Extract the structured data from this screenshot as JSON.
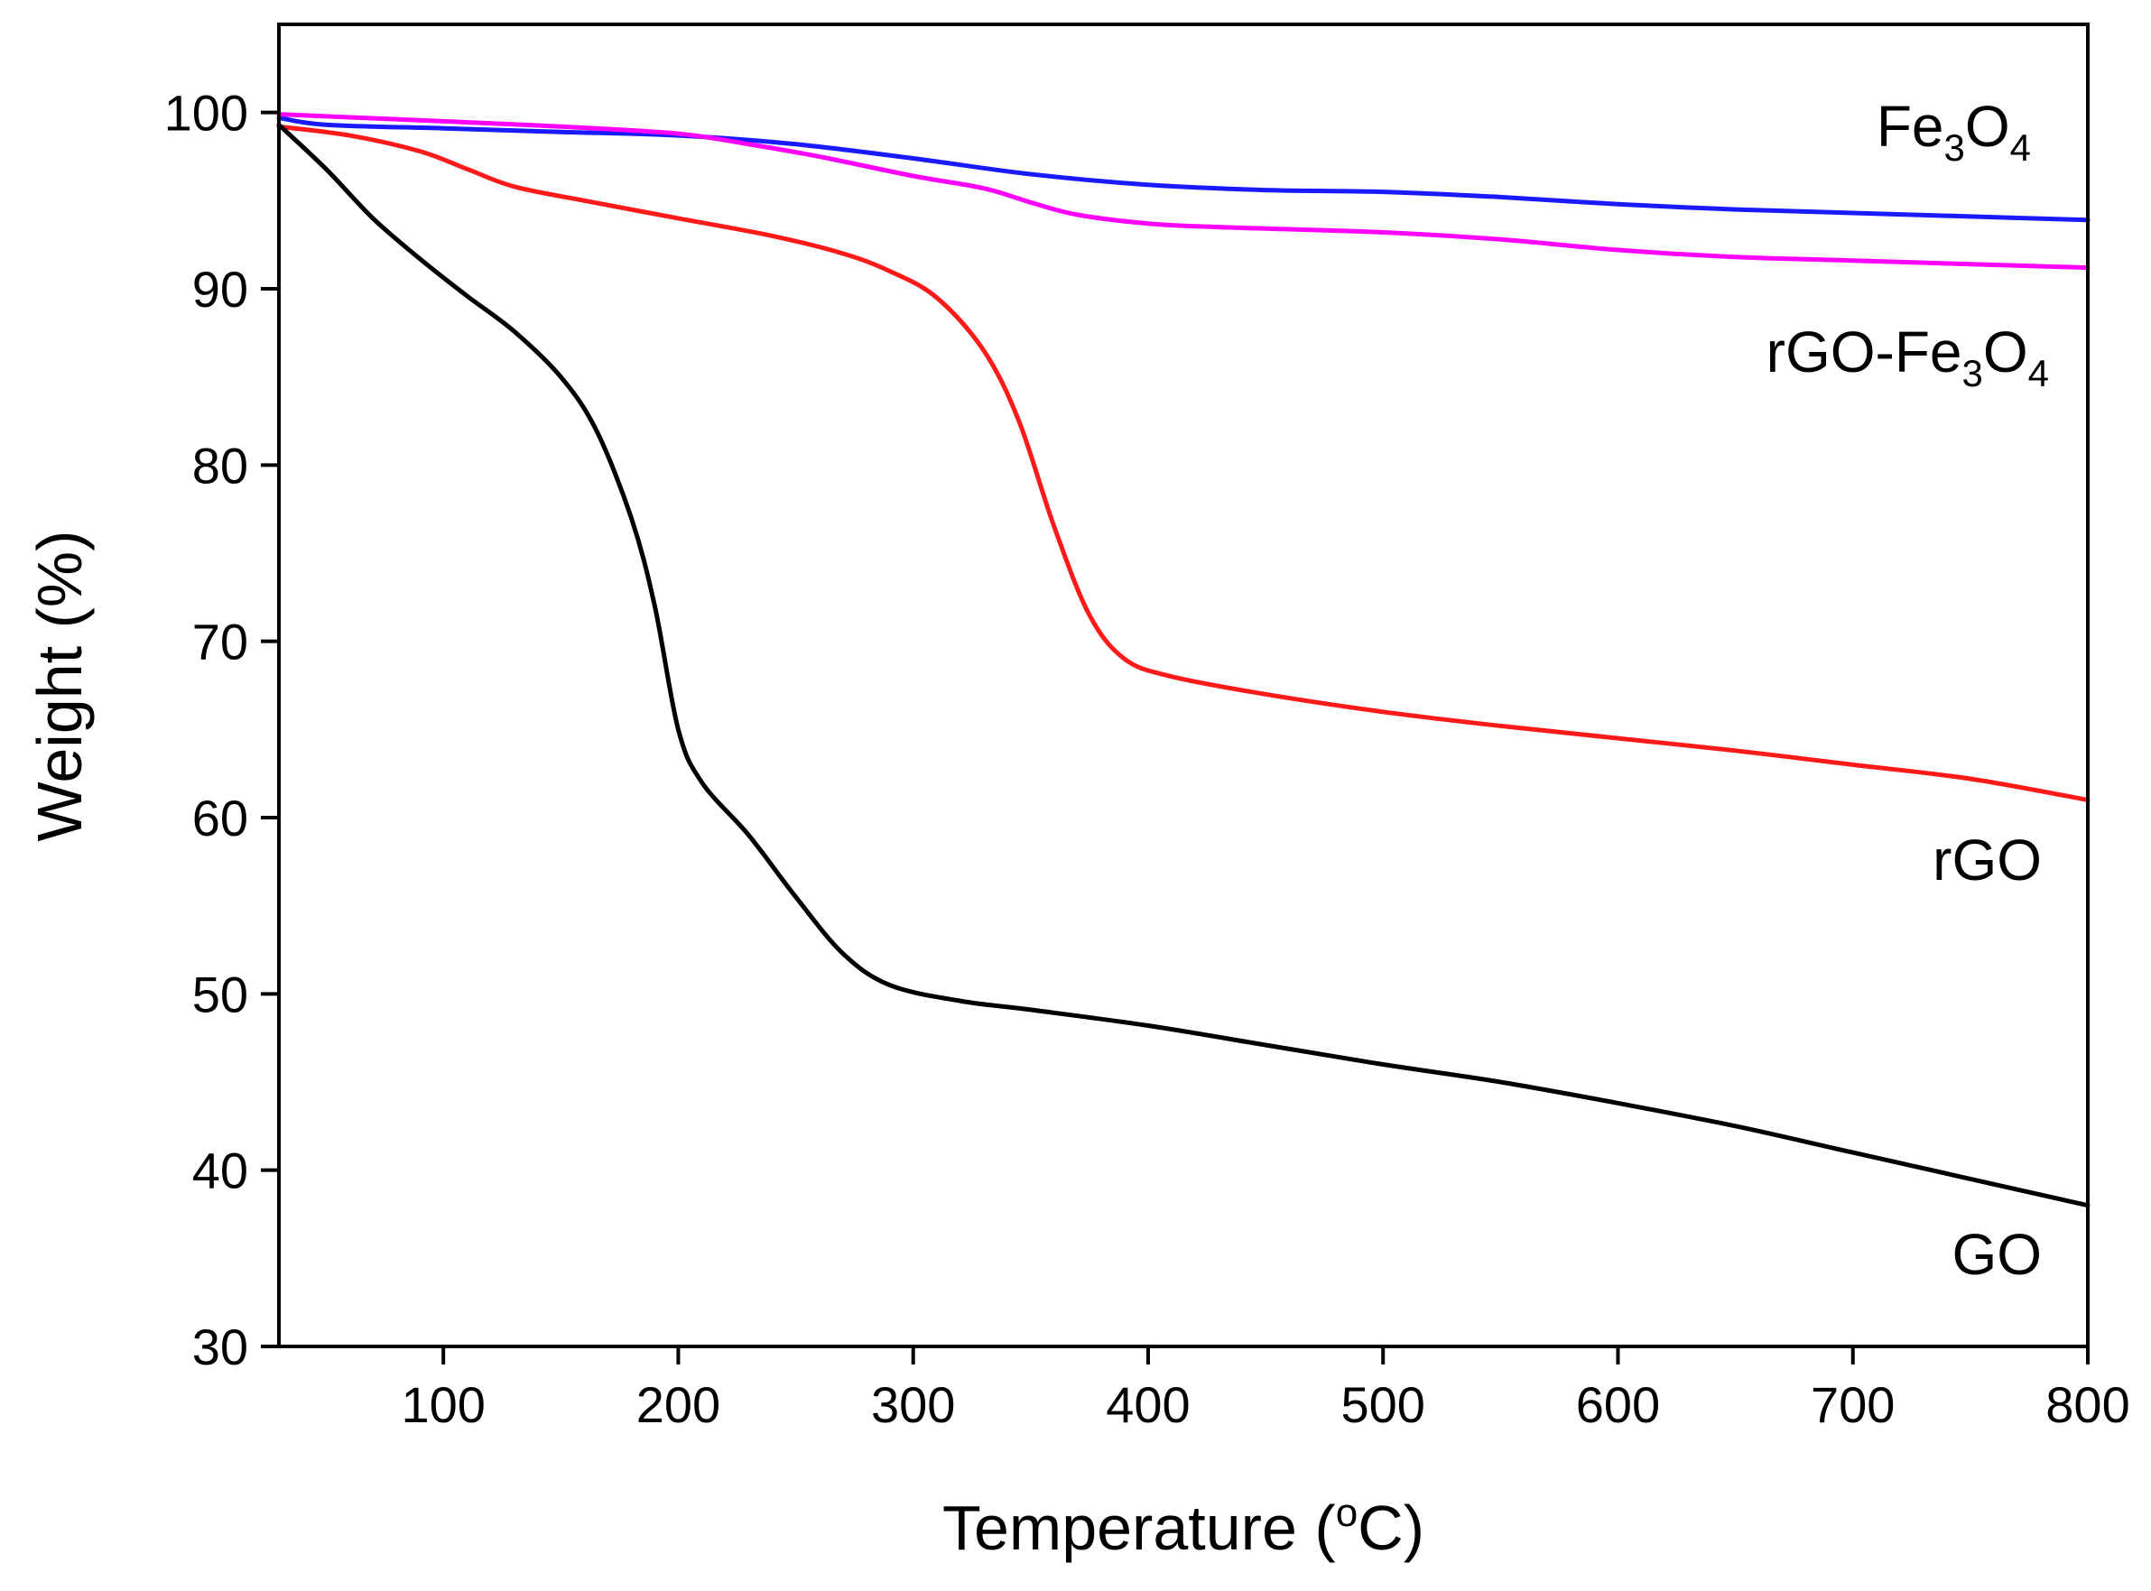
{
  "chart_data": {
    "type": "line",
    "title": "",
    "xlabel": "Temperature (°C)",
    "xlabel_parts": {
      "main": "Temperature (",
      "sup": "o",
      "unit": "C)"
    },
    "ylabel": "Weight (%)",
    "xlim": [
      30,
      800
    ],
    "ylim": [
      30,
      105
    ],
    "xticks": [
      100,
      200,
      300,
      400,
      500,
      600,
      700,
      800
    ],
    "yticks": [
      30,
      40,
      50,
      60,
      70,
      80,
      90,
      100
    ],
    "grid": false,
    "legend": "inline labels at right end of each curve",
    "series": [
      {
        "name": "Fe3O4",
        "label_parts": [
          {
            "t": "Fe"
          },
          {
            "t": "3",
            "sub": true
          },
          {
            "t": "O"
          },
          {
            "t": "4",
            "sub": true
          }
        ],
        "color": "#1a1aff",
        "x": [
          30,
          50,
          100,
          150,
          200,
          250,
          300,
          350,
          400,
          450,
          500,
          550,
          600,
          650,
          700,
          750,
          800
        ],
        "y": [
          99.7,
          99.3,
          99.1,
          98.9,
          98.7,
          98.2,
          97.4,
          96.5,
          95.9,
          95.6,
          95.5,
          95.2,
          94.8,
          94.5,
          94.3,
          94.1,
          93.9
        ]
      },
      {
        "name": "rGO-Fe3O4",
        "label_parts": [
          {
            "t": "rGO-Fe"
          },
          {
            "t": "3",
            "sub": true
          },
          {
            "t": "O"
          },
          {
            "t": "4",
            "sub": true
          }
        ],
        "color": "#ff00ff",
        "x": [
          30,
          100,
          150,
          200,
          230,
          260,
          300,
          330,
          350,
          370,
          400,
          430,
          500,
          550,
          600,
          650,
          700,
          750,
          800
        ],
        "y": [
          99.9,
          99.5,
          99.2,
          98.8,
          98.2,
          97.5,
          96.4,
          95.7,
          94.9,
          94.2,
          93.7,
          93.5,
          93.2,
          92.8,
          92.2,
          91.8,
          91.6,
          91.4,
          91.2
        ]
      },
      {
        "name": "rGO",
        "label_parts": [
          {
            "t": "rGO"
          }
        ],
        "color": "#ff1a1a",
        "x": [
          30,
          60,
          90,
          110,
          130,
          160,
          200,
          240,
          270,
          290,
          310,
          330,
          345,
          360,
          375,
          390,
          410,
          450,
          500,
          550,
          600,
          650,
          700,
          750,
          800
        ],
        "y": [
          99.2,
          98.7,
          97.8,
          96.8,
          95.8,
          95.0,
          94.0,
          93.0,
          92.0,
          91.0,
          89.5,
          86.5,
          82.5,
          76.5,
          71.5,
          69.0,
          68.0,
          67.0,
          66.0,
          65.2,
          64.5,
          63.8,
          63.0,
          62.2,
          61.0
        ]
      },
      {
        "name": "GO",
        "label_parts": [
          {
            "t": "GO"
          }
        ],
        "color": "#000000",
        "x": [
          30,
          50,
          70,
          90,
          110,
          130,
          150,
          165,
          180,
          190,
          200,
          210,
          230,
          250,
          270,
          290,
          320,
          350,
          400,
          450,
          500,
          550,
          600,
          650,
          700,
          750,
          800
        ],
        "y": [
          99.3,
          96.8,
          94.0,
          91.7,
          89.6,
          87.6,
          85.0,
          82.0,
          77.0,
          72.0,
          65.0,
          62.0,
          59.0,
          55.5,
          52.3,
          50.5,
          49.6,
          49.1,
          48.2,
          47.1,
          46.0,
          45.0,
          43.8,
          42.5,
          41.0,
          39.5,
          38.0
        ]
      }
    ]
  }
}
